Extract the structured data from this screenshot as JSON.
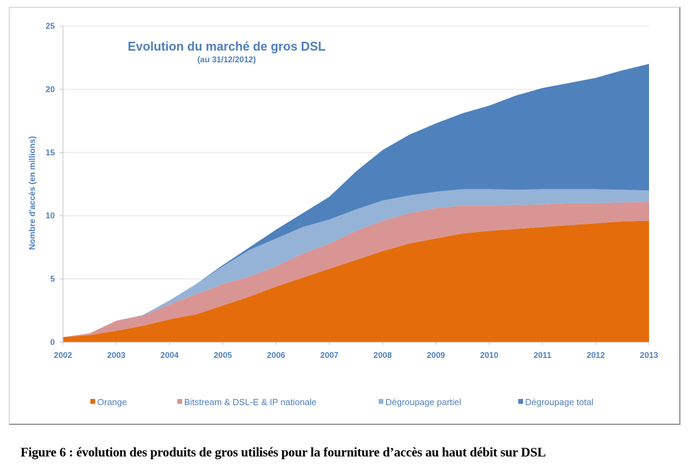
{
  "figure_caption": "Figure 6 : évolution des produits de gros utilisés pour la fourniture d’accès au haut débit sur DSL",
  "chart_data": {
    "type": "area",
    "stacked": true,
    "title": "Evolution du marché de gros DSL",
    "subtitle": "(au 31/12/2012)",
    "xlabel": "",
    "ylabel": "Nombre d'accès (en millions)",
    "xlim": [
      2002,
      2013
    ],
    "ylim": [
      0,
      25
    ],
    "x_ticks": [
      "2002",
      "2003",
      "2004",
      "2005",
      "2006",
      "2007",
      "2008",
      "2009",
      "2010",
      "2011",
      "2012",
      "2013"
    ],
    "y_ticks": [
      "0",
      "5",
      "10",
      "15",
      "20",
      "25"
    ],
    "grid": "horizontal",
    "legend_position": "bottom",
    "x": [
      2002,
      2002.5,
      2003,
      2003.5,
      2004,
      2004.5,
      2005,
      2005.5,
      2006,
      2006.5,
      2007,
      2007.5,
      2008,
      2008.5,
      2009,
      2009.5,
      2010,
      2010.5,
      2011,
      2011.5,
      2012,
      2012.5,
      2013
    ],
    "series": [
      {
        "name": "Orange",
        "color": "#e46c0a",
        "values": [
          0.4,
          0.55,
          0.9,
          1.3,
          1.8,
          2.2,
          2.9,
          3.6,
          4.4,
          5.1,
          5.8,
          6.5,
          7.2,
          7.8,
          8.2,
          8.6,
          8.8,
          8.95,
          9.1,
          9.25,
          9.4,
          9.55,
          9.6
        ]
      },
      {
        "name": "Bitstream & DSL-E & IP nationale",
        "color": "#d99594",
        "values": [
          0,
          0.15,
          0.8,
          0.8,
          1.2,
          1.6,
          1.7,
          1.6,
          1.6,
          1.9,
          2.0,
          2.3,
          2.4,
          2.4,
          2.4,
          2.2,
          2.0,
          1.9,
          1.8,
          1.75,
          1.6,
          1.5,
          1.5
        ]
      },
      {
        "name": "Dégroupage partiel",
        "color": "#95b3d7",
        "values": [
          0,
          0,
          0,
          0.05,
          0.3,
          0.8,
          1.4,
          2.1,
          2.2,
          2.1,
          1.9,
          1.7,
          1.6,
          1.4,
          1.3,
          1.3,
          1.3,
          1.2,
          1.2,
          1.1,
          1.1,
          1.0,
          0.9
        ]
      },
      {
        "name": "Dégroupage total",
        "color": "#4f81bd",
        "values": [
          0,
          0,
          0,
          0,
          0,
          0,
          0.1,
          0.2,
          0.7,
          1.1,
          1.8,
          3.0,
          4.0,
          4.8,
          5.4,
          6.0,
          6.6,
          7.45,
          8.0,
          8.4,
          8.8,
          9.45,
          10.0
        ]
      }
    ]
  }
}
